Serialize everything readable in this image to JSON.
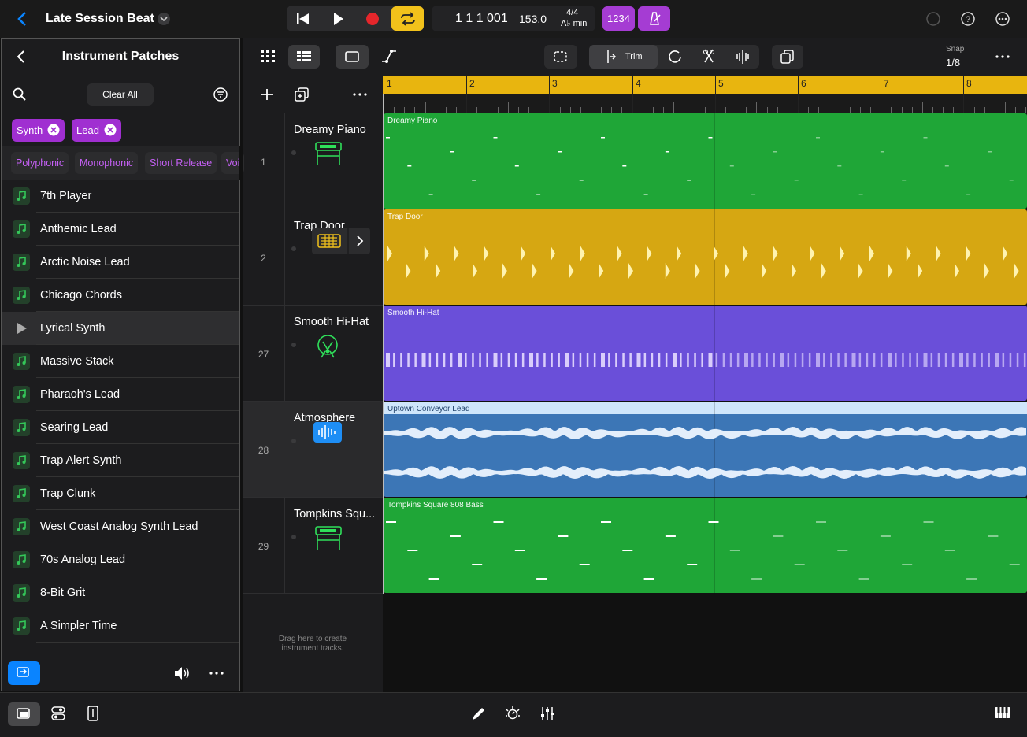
{
  "header": {
    "title": "Late Session Beat",
    "position": "1 1 1 001",
    "tempo": "153,0",
    "signature": "4/4",
    "key": "A♭ min",
    "count_in": "1234"
  },
  "browser": {
    "title": "Instrument Patches",
    "clear": "Clear All",
    "tags": [
      "Synth",
      "Lead"
    ],
    "filters": [
      "Polyphonic",
      "Monophonic",
      "Short Release",
      "Voi"
    ],
    "patches": [
      "7th Player",
      "Anthemic Lead",
      "Arctic Noise Lead",
      "Chicago Chords",
      "Lyrical Synth",
      "Massive Stack",
      "Pharaoh's Lead",
      "Searing Lead",
      "Trap Alert Synth",
      "Trap Clunk",
      "West Coast Analog Synth Lead",
      "70s Analog Lead",
      "8-Bit Grit",
      "A Simpler Time"
    ]
  },
  "toolbar": {
    "trim": "Trim",
    "snap_label": "Snap",
    "snap_value": "1/8"
  },
  "ruler": [
    "1",
    "2",
    "3",
    "4",
    "5",
    "6",
    "7",
    "8"
  ],
  "tracks": [
    {
      "number": "1",
      "name": "Dreamy Piano",
      "region": "Dreamy Piano"
    },
    {
      "number": "2",
      "name": "Trap Door",
      "region": "Trap Door"
    },
    {
      "number": "27",
      "name": "Smooth Hi-Hat",
      "region": "Smooth Hi-Hat"
    },
    {
      "number": "28",
      "name": "Atmosphere",
      "region": "Uptown Conveyor Lead"
    },
    {
      "number": "29",
      "name": "Tompkins Squ...",
      "region": "Tompkins Square 808 Bass"
    }
  ],
  "hint": "Drag here to create instrument tracks."
}
